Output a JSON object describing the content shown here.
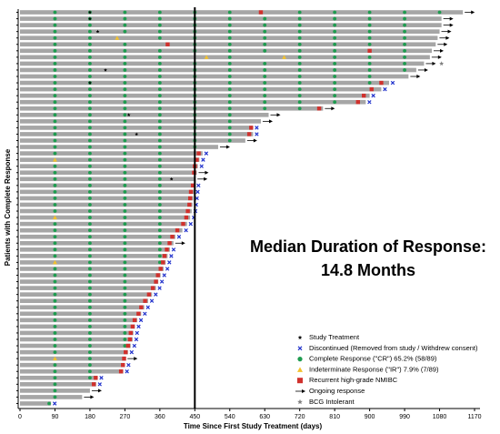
{
  "chart_data": {
    "type": "swimmer",
    "x_label": "Time Since First Study Treatment (days)",
    "y_label": "Patients with Complete Response",
    "annotation": [
      "Median Duration of Response:",
      "14.8 Months"
    ],
    "median": 450,
    "xlim": [
      0,
      1170
    ],
    "xticks": [
      0,
      90,
      180,
      270,
      360,
      450,
      540,
      630,
      720,
      810,
      900,
      990,
      1080,
      1170
    ],
    "colors": {
      "bar": "#a6a6a6",
      "cr": "#1e9c4f",
      "ir": "#f2c12e",
      "recurrence": "#d0312d",
      "discontinued": "#2233cc",
      "treatment": "#000000",
      "bcg": "#7f7f7f"
    },
    "legend": [
      "Study Treatment",
      "Discontinued (Removed from study / Withdrew consent)",
      "Complete Response (\"CR\") 65.2% (58/89)",
      "Indeterminate Response (\"IR\") 7.9% (7/89)",
      "Recurrent high-grade NMIBC",
      "Ongoing response",
      "BCG Intolerant"
    ],
    "patients": [
      {
        "duration": 1140,
        "status": "ongoing",
        "recurrence": 620,
        "cr": [
          90,
          180,
          270,
          360,
          450,
          540,
          720,
          810,
          900,
          990,
          1080
        ],
        "treatment": [
          180
        ]
      },
      {
        "duration": 1085,
        "status": "ongoing",
        "cr": [
          90,
          180,
          270,
          360,
          450,
          540,
          630,
          720,
          810,
          900,
          990
        ],
        "treatment": [
          180
        ]
      },
      {
        "duration": 1085,
        "status": "ongoing",
        "cr": [
          90,
          180,
          270,
          360,
          450,
          540,
          630,
          720,
          810,
          900,
          990
        ]
      },
      {
        "duration": 1080,
        "status": "ongoing",
        "cr": [
          90,
          180,
          270,
          360,
          450,
          540,
          630,
          720,
          810,
          900,
          990
        ],
        "treatment": [
          200
        ]
      },
      {
        "duration": 1075,
        "status": "ongoing",
        "cr": [
          90,
          180,
          360,
          450,
          540,
          630,
          720,
          810,
          900,
          990
        ],
        "ir": [
          250
        ]
      },
      {
        "duration": 1070,
        "status": "ongoing",
        "recurrence": 380,
        "cr": [
          90,
          180,
          270,
          450,
          540,
          630,
          720,
          810,
          900,
          990
        ]
      },
      {
        "duration": 1060,
        "status": "ongoing",
        "recurrence": 900,
        "cr": [
          90,
          180,
          270,
          360,
          450,
          540,
          630,
          720,
          810,
          990
        ]
      },
      {
        "duration": 1055,
        "status": "ongoing",
        "cr": [
          90,
          180,
          270,
          360,
          540,
          720,
          810,
          900,
          990
        ],
        "ir": [
          480,
          680
        ]
      },
      {
        "duration": 1040,
        "status": "ongoing",
        "bcg": 1085,
        "cr": [
          90,
          180,
          270,
          360,
          450,
          540,
          630,
          720,
          810,
          900,
          990
        ]
      },
      {
        "duration": 1020,
        "status": "ongoing",
        "cr": [
          90,
          180,
          270,
          360,
          450,
          540,
          630,
          720,
          810,
          900,
          990
        ],
        "treatment": [
          220
        ]
      },
      {
        "duration": 1000,
        "status": "ongoing",
        "cr": [
          90,
          180,
          270,
          360,
          450,
          540,
          630,
          720,
          810,
          900
        ]
      },
      {
        "duration": 950,
        "status": "discontinued",
        "recurrence": 930,
        "cr": [
          90,
          180,
          270,
          360,
          450,
          540,
          630,
          720,
          810,
          900
        ],
        "treatment": [
          180
        ]
      },
      {
        "duration": 930,
        "status": "discontinued",
        "recurrence": 905,
        "cr": [
          90,
          180,
          270,
          360,
          450,
          540,
          630,
          720,
          810
        ]
      },
      {
        "duration": 900,
        "status": "discontinued",
        "recurrence": 885,
        "cr": [
          90,
          180,
          270,
          360,
          450,
          540,
          630,
          720,
          810
        ]
      },
      {
        "duration": 890,
        "status": "discontinued",
        "recurrence": 870,
        "cr": [
          90,
          180,
          270,
          360,
          450,
          540,
          630,
          720,
          810
        ]
      },
      {
        "duration": 780,
        "status": "ongoing",
        "recurrence": 770,
        "cr": [
          90,
          180,
          270,
          360,
          450,
          540,
          630,
          720
        ]
      },
      {
        "duration": 640,
        "status": "ongoing",
        "cr": [
          90,
          180,
          270,
          360,
          450,
          540
        ],
        "treatment": [
          280
        ]
      },
      {
        "duration": 620,
        "status": "ongoing",
        "cr": [
          90,
          180,
          270,
          360,
          450,
          540
        ]
      },
      {
        "duration": 600,
        "status": "discontinued",
        "recurrence": 595,
        "cr": [
          90,
          180,
          270,
          360,
          450,
          540
        ]
      },
      {
        "duration": 600,
        "status": "discontinued",
        "recurrence": 590,
        "cr": [
          90,
          180,
          270,
          360,
          450,
          540
        ],
        "treatment": [
          300
        ]
      },
      {
        "duration": 580,
        "status": "ongoing",
        "cr": [
          90,
          180,
          270,
          360,
          450,
          540
        ]
      },
      {
        "duration": 510,
        "status": "ongoing",
        "cr": [
          90,
          180,
          270,
          360,
          450
        ]
      },
      {
        "duration": 470,
        "status": "discontinued",
        "recurrence": 460,
        "cr": [
          90,
          180,
          270,
          360
        ]
      },
      {
        "duration": 462,
        "status": "discontinued",
        "recurrence": 455,
        "cr": [
          180,
          270,
          360
        ],
        "ir": [
          90
        ]
      },
      {
        "duration": 458,
        "status": "discontinued",
        "recurrence": 450,
        "cr": [
          90,
          180,
          270,
          360
        ]
      },
      {
        "duration": 455,
        "status": "ongoing",
        "recurrence": 448,
        "cr": [
          90,
          180,
          270,
          360
        ]
      },
      {
        "duration": 452,
        "status": "ongoing",
        "cr": [
          90,
          180,
          270,
          360
        ],
        "treatment": [
          390
        ]
      },
      {
        "duration": 450,
        "status": "discontinued",
        "recurrence": 445,
        "cr": [
          90,
          180,
          270,
          360
        ]
      },
      {
        "duration": 448,
        "status": "discontinued",
        "recurrence": 440,
        "cr": [
          90,
          180,
          270,
          360
        ]
      },
      {
        "duration": 446,
        "status": "discontinued",
        "recurrence": 438,
        "cr": [
          90,
          180,
          270,
          360
        ]
      },
      {
        "duration": 444,
        "status": "discontinued",
        "recurrence": 436,
        "cr": [
          90,
          180,
          270,
          360
        ]
      },
      {
        "duration": 442,
        "status": "discontinued",
        "recurrence": 432,
        "cr": [
          90,
          180,
          270,
          360
        ]
      },
      {
        "duration": 438,
        "status": "discontinued",
        "recurrence": 428,
        "cr": [
          180,
          270,
          360
        ],
        "ir": [
          90
        ]
      },
      {
        "duration": 430,
        "status": "discontinued",
        "recurrence": 420,
        "cr": [
          90,
          180,
          270,
          360
        ]
      },
      {
        "duration": 418,
        "status": "discontinued",
        "recurrence": 405,
        "cr": [
          90,
          180,
          270,
          360
        ]
      },
      {
        "duration": 400,
        "status": "discontinued",
        "recurrence": 392,
        "cr": [
          90,
          180,
          270,
          360
        ]
      },
      {
        "duration": 395,
        "status": "ongoing",
        "recurrence": 385,
        "cr": [
          90,
          180,
          270,
          360
        ]
      },
      {
        "duration": 386,
        "status": "discontinued",
        "recurrence": 378,
        "cr": [
          90,
          180,
          270,
          360
        ]
      },
      {
        "duration": 380,
        "status": "discontinued",
        "recurrence": 372,
        "cr": [
          90,
          180,
          270,
          360
        ]
      },
      {
        "duration": 375,
        "status": "discontinued",
        "recurrence": 368,
        "cr": [
          180,
          270,
          360
        ],
        "ir": [
          90
        ]
      },
      {
        "duration": 370,
        "status": "discontinued",
        "recurrence": 362,
        "cr": [
          90,
          180,
          270
        ]
      },
      {
        "duration": 362,
        "status": "discontinued",
        "recurrence": 355,
        "cr": [
          90,
          180,
          270
        ]
      },
      {
        "duration": 356,
        "status": "discontinued",
        "recurrence": 350,
        "cr": [
          90,
          180,
          270
        ]
      },
      {
        "duration": 350,
        "status": "discontinued",
        "recurrence": 342,
        "cr": [
          90,
          180,
          270
        ]
      },
      {
        "duration": 340,
        "status": "discontinued",
        "recurrence": 332,
        "cr": [
          90,
          180,
          270
        ]
      },
      {
        "duration": 330,
        "status": "discontinued",
        "recurrence": 322,
        "cr": [
          90,
          180,
          270
        ]
      },
      {
        "duration": 320,
        "status": "discontinued",
        "recurrence": 312,
        "cr": [
          90,
          180,
          270
        ]
      },
      {
        "duration": 312,
        "status": "discontinued",
        "recurrence": 305,
        "cr": [
          90,
          180,
          270
        ]
      },
      {
        "duration": 302,
        "status": "discontinued",
        "recurrence": 295,
        "cr": [
          90,
          180,
          270
        ]
      },
      {
        "duration": 296,
        "status": "discontinued",
        "recurrence": 290,
        "cr": [
          90,
          180,
          270
        ]
      },
      {
        "duration": 292,
        "status": "discontinued",
        "recurrence": 285,
        "cr": [
          90,
          180,
          270
        ]
      },
      {
        "duration": 290,
        "status": "discontinued",
        "recurrence": 283,
        "cr": [
          90,
          180,
          270
        ]
      },
      {
        "duration": 285,
        "status": "discontinued",
        "recurrence": 278,
        "cr": [
          90,
          180,
          270
        ]
      },
      {
        "duration": 278,
        "status": "discontinued",
        "recurrence": 272,
        "cr": [
          90,
          180
        ]
      },
      {
        "duration": 272,
        "status": "ongoing",
        "recurrence": 268,
        "cr": [
          180
        ],
        "ir": [
          90
        ]
      },
      {
        "duration": 270,
        "status": "discontinued",
        "recurrence": 265,
        "cr": [
          90,
          180
        ]
      },
      {
        "duration": 266,
        "status": "discontinued",
        "recurrence": 260,
        "cr": [
          90,
          180
        ]
      },
      {
        "duration": 200,
        "status": "discontinued",
        "recurrence": 195,
        "cr": [
          90,
          180
        ]
      },
      {
        "duration": 196,
        "status": "discontinued",
        "recurrence": 190,
        "cr": [
          90
        ]
      },
      {
        "duration": 180,
        "status": "ongoing",
        "cr": [
          90
        ]
      },
      {
        "duration": 160,
        "status": "ongoing",
        "cr": [
          90
        ]
      },
      {
        "duration": 80,
        "status": "discontinued",
        "cr": [
          75
        ]
      }
    ]
  }
}
